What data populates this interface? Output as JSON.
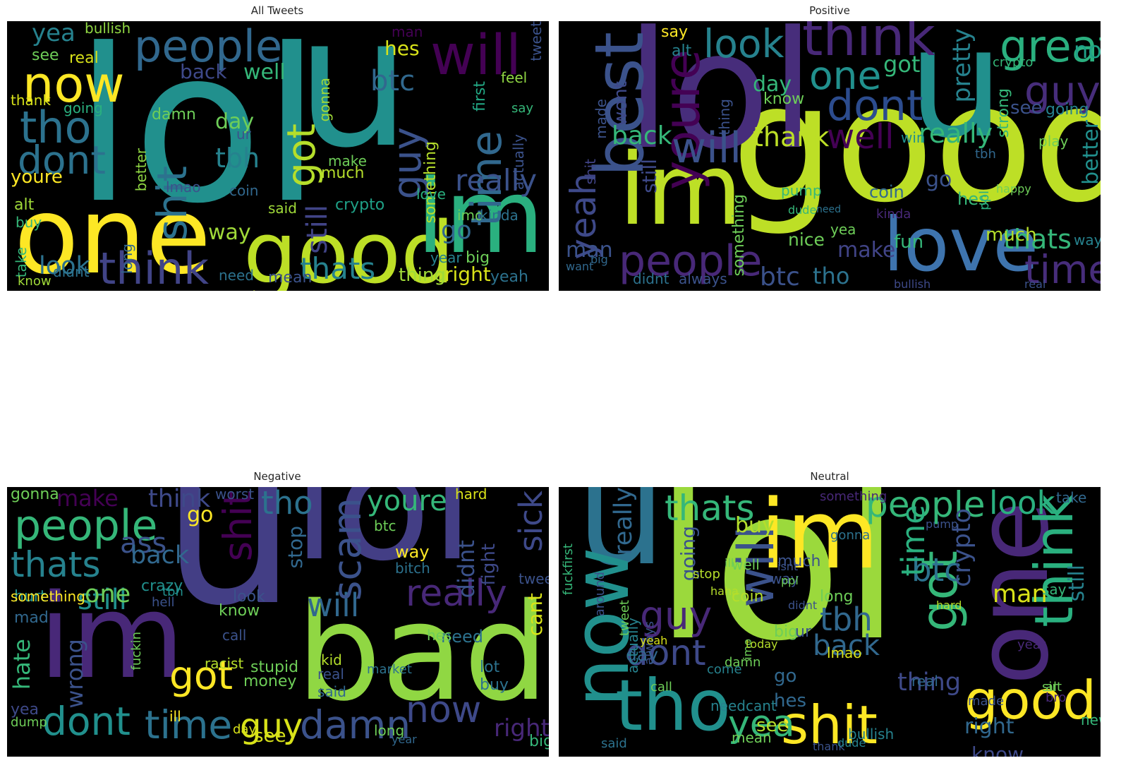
{
  "panels": [
    {
      "title": "All Tweets",
      "words": [
        {
          "t": "lol",
          "c": "#21908d"
        },
        {
          "t": "u",
          "c": "#21908d"
        },
        {
          "t": "one",
          "c": "#fde725"
        },
        {
          "t": "good",
          "c": "#bddf26"
        },
        {
          "t": "im",
          "c": "#2ab07f"
        },
        {
          "t": "people",
          "c": "#31688e"
        },
        {
          "t": "now",
          "c": "#fde725"
        },
        {
          "t": "tho",
          "c": "#2c728e"
        },
        {
          "t": "dont",
          "c": "#2c728e"
        },
        {
          "t": "think",
          "c": "#414487"
        },
        {
          "t": "will",
          "c": "#440154"
        },
        {
          "t": "guy",
          "c": "#3b528b"
        },
        {
          "t": "shit",
          "c": "#2c728e"
        },
        {
          "t": "got",
          "c": "#b5de2b"
        },
        {
          "t": "time",
          "c": "#31688e"
        },
        {
          "t": "tbh",
          "c": "#26828e"
        },
        {
          "t": "thats",
          "c": "#26828e"
        },
        {
          "t": "look",
          "c": "#2c728e"
        },
        {
          "t": "btc",
          "c": "#31688e"
        },
        {
          "t": "really",
          "c": "#3b528b"
        },
        {
          "t": "yea",
          "c": "#26828e"
        },
        {
          "t": "still",
          "c": "#414487"
        },
        {
          "t": "back",
          "c": "#3e4989"
        },
        {
          "t": "well",
          "c": "#35b779"
        },
        {
          "t": "see",
          "c": "#6ece58"
        },
        {
          "t": "day",
          "c": "#6ece58"
        },
        {
          "t": "youre",
          "c": "#fde725"
        },
        {
          "t": "right",
          "c": "#d8e219"
        },
        {
          "t": "thing",
          "c": "#a0da39"
        },
        {
          "t": "way",
          "c": "#a0da39"
        },
        {
          "t": "go",
          "c": "#31688e"
        },
        {
          "t": "hes",
          "c": "#d8e219"
        },
        {
          "t": "bullish",
          "c": "#90d743"
        },
        {
          "t": "something",
          "c": "#b5de2b"
        },
        {
          "t": "crypto",
          "c": "#1fa187"
        },
        {
          "t": "make",
          "c": "#6ece58"
        },
        {
          "t": "much",
          "c": "#b5de2b"
        },
        {
          "t": "said",
          "c": "#a0da39"
        },
        {
          "t": "mean",
          "c": "#3b528b"
        },
        {
          "t": "yeah",
          "c": "#2c728e"
        },
        {
          "t": "real",
          "c": "#d8e219"
        },
        {
          "t": "thank",
          "c": "#d8e219"
        },
        {
          "t": "going",
          "c": "#2ab07f"
        },
        {
          "t": "better",
          "c": "#90d743"
        },
        {
          "t": "lmao",
          "c": "#3b528b"
        },
        {
          "t": "man",
          "c": "#440154"
        },
        {
          "t": "alt",
          "c": "#a0da39"
        },
        {
          "t": "buy",
          "c": "#35b779"
        },
        {
          "t": "take",
          "c": "#35b779"
        },
        {
          "t": "know",
          "c": "#a0da39"
        },
        {
          "t": "didnt",
          "c": "#2c728e"
        },
        {
          "t": "need",
          "c": "#2c728e"
        },
        {
          "t": "long",
          "c": "#31688e"
        },
        {
          "t": "gonna",
          "c": "#a0da39"
        },
        {
          "t": "actually",
          "c": "#3b528b"
        },
        {
          "t": "imo",
          "c": "#6ece58"
        },
        {
          "t": "kinda",
          "c": "#2c728e"
        },
        {
          "t": "big",
          "c": "#6ece58"
        },
        {
          "t": "ur",
          "c": "#3b528b"
        },
        {
          "t": "love",
          "c": "#2ab07f"
        },
        {
          "t": "coin",
          "c": "#31688e"
        },
        {
          "t": "damn",
          "c": "#6ece58"
        },
        {
          "t": "first",
          "c": "#22a884"
        },
        {
          "t": "say",
          "c": "#35b779"
        },
        {
          "t": "tweet",
          "c": "#3b528b"
        },
        {
          "t": "feel",
          "c": "#90d743"
        },
        {
          "t": "year",
          "c": "#26828e"
        }
      ]
    },
    {
      "title": "Positive",
      "words": [
        {
          "t": "good",
          "c": "#bddf26"
        },
        {
          "t": "u",
          "c": "#21908d"
        },
        {
          "t": "lol",
          "c": "#472d7b"
        },
        {
          "t": "im",
          "c": "#bddf26"
        },
        {
          "t": "best",
          "c": "#3b528b"
        },
        {
          "t": "love",
          "c": "#3e74ae"
        },
        {
          "t": "people",
          "c": "#482878"
        },
        {
          "t": "think",
          "c": "#482878"
        },
        {
          "t": "great",
          "c": "#2ab07f"
        },
        {
          "t": "youre",
          "c": "#440154"
        },
        {
          "t": "dont",
          "c": "#2c4c8e"
        },
        {
          "t": "will",
          "c": "#3b528b"
        },
        {
          "t": "one",
          "c": "#21908d"
        },
        {
          "t": "look",
          "c": "#26828e"
        },
        {
          "t": "guy",
          "c": "#472d7b"
        },
        {
          "t": "time",
          "c": "#472d7b"
        },
        {
          "t": "yeah",
          "c": "#3e4989"
        },
        {
          "t": "well",
          "c": "#440154"
        },
        {
          "t": "really",
          "c": "#35b779"
        },
        {
          "t": "thank",
          "c": "#bddf26"
        },
        {
          "t": "thats",
          "c": "#35b779"
        },
        {
          "t": "pretty",
          "c": "#26828e"
        },
        {
          "t": "got",
          "c": "#35b779"
        },
        {
          "t": "day",
          "c": "#35b779"
        },
        {
          "t": "now",
          "c": "#1fa187"
        },
        {
          "t": "back",
          "c": "#35b779"
        },
        {
          "t": "still",
          "c": "#3e4989"
        },
        {
          "t": "wont",
          "c": "#3e4989"
        },
        {
          "t": "btc",
          "c": "#3b528b"
        },
        {
          "t": "tho",
          "c": "#2c728e"
        },
        {
          "t": "man",
          "c": "#3b528b"
        },
        {
          "t": "make",
          "c": "#414487"
        },
        {
          "t": "go",
          "c": "#3b528b"
        },
        {
          "t": "see",
          "c": "#3b528b"
        },
        {
          "t": "better",
          "c": "#21908d"
        },
        {
          "t": "nice",
          "c": "#6ece58"
        },
        {
          "t": "fun",
          "c": "#35b779"
        },
        {
          "t": "much",
          "c": "#b5de2b"
        },
        {
          "t": "coin",
          "c": "#31688e"
        },
        {
          "t": "hes",
          "c": "#35b779"
        },
        {
          "t": "say",
          "c": "#fde725"
        },
        {
          "t": "alt",
          "c": "#26828e"
        },
        {
          "t": "going",
          "c": "#26828e"
        },
        {
          "t": "always",
          "c": "#3b528b"
        },
        {
          "t": "didnt",
          "c": "#2c728e"
        },
        {
          "t": "shit",
          "c": "#414487"
        },
        {
          "t": "something",
          "c": "#6ece58"
        },
        {
          "t": "strong",
          "c": "#35b779"
        },
        {
          "t": "play",
          "c": "#6ece58"
        },
        {
          "t": "win",
          "c": "#21908d"
        },
        {
          "t": "pump",
          "c": "#35b779"
        },
        {
          "t": "know",
          "c": "#6ece58"
        },
        {
          "t": "crypto",
          "c": "#35b779"
        },
        {
          "t": "yea",
          "c": "#6ece58"
        },
        {
          "t": "bullish",
          "c": "#3e4989"
        },
        {
          "t": "tbh",
          "c": "#31688e"
        },
        {
          "t": "real",
          "c": "#3b528b"
        },
        {
          "t": "kinda",
          "c": "#482878"
        },
        {
          "t": "ppl",
          "c": "#2ab07f"
        },
        {
          "t": "made",
          "c": "#3b528b"
        },
        {
          "t": "thing",
          "c": "#3b528b"
        },
        {
          "t": "happy",
          "c": "#6ece58"
        },
        {
          "t": "dude",
          "c": "#35b779"
        },
        {
          "t": "need",
          "c": "#2c728e"
        },
        {
          "t": "want",
          "c": "#31688e"
        },
        {
          "t": "big",
          "c": "#31688e"
        },
        {
          "t": "way",
          "c": "#26828e"
        }
      ]
    },
    {
      "title": "Negative",
      "words": [
        {
          "t": "u",
          "c": "#433e85"
        },
        {
          "t": "lol",
          "c": "#433e85"
        },
        {
          "t": "bad",
          "c": "#90d743"
        },
        {
          "t": "im",
          "c": "#482878"
        },
        {
          "t": "people",
          "c": "#35b779"
        },
        {
          "t": "thats",
          "c": "#26828e"
        },
        {
          "t": "dont",
          "c": "#21908d"
        },
        {
          "t": "time",
          "c": "#2c728e"
        },
        {
          "t": "got",
          "c": "#fde725"
        },
        {
          "t": "shit",
          "c": "#440154"
        },
        {
          "t": "really",
          "c": "#482878"
        },
        {
          "t": "will",
          "c": "#31688e"
        },
        {
          "t": "now",
          "c": "#3e4989"
        },
        {
          "t": "damn",
          "c": "#3b528b"
        },
        {
          "t": "guy",
          "c": "#d8e219"
        },
        {
          "t": "tho",
          "c": "#2c728e"
        },
        {
          "t": "scam",
          "c": "#3b528b"
        },
        {
          "t": "youre",
          "c": "#35b779"
        },
        {
          "t": "sick",
          "c": "#3e4989"
        },
        {
          "t": "still",
          "c": "#21908d"
        },
        {
          "t": "ass",
          "c": "#3b528b"
        },
        {
          "t": "one",
          "c": "#6ece58"
        },
        {
          "t": "back",
          "c": "#31688e"
        },
        {
          "t": "think",
          "c": "#3e4989"
        },
        {
          "t": "make",
          "c": "#440154"
        },
        {
          "t": "go",
          "c": "#fde725"
        },
        {
          "t": "right",
          "c": "#482878"
        },
        {
          "t": "see",
          "c": "#d8e219"
        },
        {
          "t": "didnt",
          "c": "#3b528b"
        },
        {
          "t": "wrong",
          "c": "#3b528b"
        },
        {
          "t": "hate",
          "c": "#35b779"
        },
        {
          "t": "fight",
          "c": "#3e4989"
        },
        {
          "t": "cant",
          "c": "#d8e219"
        },
        {
          "t": "way",
          "c": "#fde725"
        },
        {
          "t": "stop",
          "c": "#31688e"
        },
        {
          "t": "need",
          "c": "#2c728e"
        },
        {
          "t": "know",
          "c": "#6ece58"
        },
        {
          "t": "look",
          "c": "#3b528b"
        },
        {
          "t": "crazy",
          "c": "#21908d"
        },
        {
          "t": "stupid",
          "c": "#6ece58"
        },
        {
          "t": "money",
          "c": "#6ece58"
        },
        {
          "t": "racist",
          "c": "#b5de2b"
        },
        {
          "t": "hurt",
          "c": "#21908d"
        },
        {
          "t": "mad",
          "c": "#31688e"
        },
        {
          "t": "bitch",
          "c": "#2c728e"
        },
        {
          "t": "hard",
          "c": "#d8e219"
        },
        {
          "t": "worst",
          "c": "#3b528b"
        },
        {
          "t": "gonna",
          "c": "#6ece58"
        },
        {
          "t": "btc",
          "c": "#6ece58"
        },
        {
          "t": "lot",
          "c": "#2c728e"
        },
        {
          "t": "buy",
          "c": "#2c728e"
        },
        {
          "t": "kid",
          "c": "#b5de2b"
        },
        {
          "t": "real",
          "c": "#3b528b"
        },
        {
          "t": "said",
          "c": "#31688e"
        },
        {
          "t": "market",
          "c": "#2c728e"
        },
        {
          "t": "something",
          "c": "#fde725"
        },
        {
          "t": "tweet",
          "c": "#3b528b"
        },
        {
          "t": "long",
          "c": "#6ece58"
        },
        {
          "t": "year",
          "c": "#31688e"
        },
        {
          "t": "day",
          "c": "#d8e219"
        },
        {
          "t": "ill",
          "c": "#fde725"
        },
        {
          "t": "hell",
          "c": "#3b528b"
        },
        {
          "t": "call",
          "c": "#3b528b"
        },
        {
          "t": "fuckin",
          "c": "#6ece58"
        },
        {
          "t": "tbh",
          "c": "#21908d"
        },
        {
          "t": "yea",
          "c": "#3e4989"
        },
        {
          "t": "big",
          "c": "#35b779"
        },
        {
          "t": "dump",
          "c": "#6ece58"
        },
        {
          "t": "hes",
          "c": "#6ece58"
        }
      ]
    },
    {
      "title": "Neutral",
      "words": [
        {
          "t": "lol",
          "c": "#9bd93c"
        },
        {
          "t": "u",
          "c": "#2c728e"
        },
        {
          "t": "one",
          "c": "#482878"
        },
        {
          "t": "im",
          "c": "#fde725"
        },
        {
          "t": "now",
          "c": "#21908d"
        },
        {
          "t": "tho",
          "c": "#21908d"
        },
        {
          "t": "shit",
          "c": "#fde725"
        },
        {
          "t": "good",
          "c": "#fde725"
        },
        {
          "t": "think",
          "c": "#2ab07f"
        },
        {
          "t": "got",
          "c": "#35b779"
        },
        {
          "t": "people",
          "c": "#35b779"
        },
        {
          "t": "look",
          "c": "#2ab07f"
        },
        {
          "t": "thats",
          "c": "#35b779"
        },
        {
          "t": "will",
          "c": "#3b528b"
        },
        {
          "t": "dont",
          "c": "#3e4989"
        },
        {
          "t": "guy",
          "c": "#482878"
        },
        {
          "t": "tbh",
          "c": "#31688e"
        },
        {
          "t": "back",
          "c": "#31688e"
        },
        {
          "t": "btc",
          "c": "#2c728e"
        },
        {
          "t": "yea",
          "c": "#35b779"
        },
        {
          "t": "time",
          "c": "#2ab07f"
        },
        {
          "t": "really",
          "c": "#31688e"
        },
        {
          "t": "crypto",
          "c": "#3b528b"
        },
        {
          "t": "thing",
          "c": "#3e4989"
        },
        {
          "t": "right",
          "c": "#31688e"
        },
        {
          "t": "still",
          "c": "#26828e"
        },
        {
          "t": "man",
          "c": "#d8e219"
        },
        {
          "t": "know",
          "c": "#3e4989"
        },
        {
          "t": "go",
          "c": "#31688e"
        },
        {
          "t": "day",
          "c": "#31688e"
        },
        {
          "t": "going",
          "c": "#3b528b"
        },
        {
          "t": "buy",
          "c": "#b5de2b"
        },
        {
          "t": "hes",
          "c": "#31688e"
        },
        {
          "t": "see",
          "c": "#b5de2b"
        },
        {
          "t": "coin",
          "c": "#b5de2b"
        },
        {
          "t": "long",
          "c": "#6ece58"
        },
        {
          "t": "big",
          "c": "#6ece58"
        },
        {
          "t": "ur",
          "c": "#3b528b"
        },
        {
          "t": "well",
          "c": "#6ece58"
        },
        {
          "t": "much",
          "c": "#3b528b"
        },
        {
          "t": "way",
          "c": "#3b528b"
        },
        {
          "t": "bullish",
          "c": "#26828e"
        },
        {
          "t": "needcant",
          "c": "#26828e"
        },
        {
          "t": "mean",
          "c": "#6ece58"
        },
        {
          "t": "real",
          "c": "#31688e"
        },
        {
          "t": "lmao",
          "c": "#d8e219"
        },
        {
          "t": "fuckfirst",
          "c": "#35b779"
        },
        {
          "t": "actually",
          "c": "#26828e"
        },
        {
          "t": "always",
          "c": "#3b528b"
        },
        {
          "t": "yeah",
          "c": "#d8e219"
        },
        {
          "t": "say",
          "c": "#35b779"
        },
        {
          "t": "year",
          "c": "#482878"
        },
        {
          "t": "made",
          "c": "#3b528b"
        },
        {
          "t": "alt",
          "c": "#6ece58"
        },
        {
          "t": "new",
          "c": "#35b779"
        },
        {
          "t": "take",
          "c": "#31688e"
        },
        {
          "t": "something",
          "c": "#482878"
        },
        {
          "t": "imo",
          "c": "#6ece58"
        },
        {
          "t": "come",
          "c": "#26828e"
        },
        {
          "t": "today",
          "c": "#b5de2b"
        },
        {
          "t": "said",
          "c": "#2c728e"
        },
        {
          "t": "thank",
          "c": "#3b528b"
        },
        {
          "t": "damn",
          "c": "#6ece58"
        },
        {
          "t": "bro",
          "c": "#482878"
        },
        {
          "t": "sir",
          "c": "#6ece58"
        },
        {
          "t": "call",
          "c": "#6ece58"
        },
        {
          "t": "stop",
          "c": "#b5de2b"
        },
        {
          "t": "gonna",
          "c": "#2c728e"
        },
        {
          "t": "dude",
          "c": "#26828e"
        },
        {
          "t": "pump",
          "c": "#3b528b"
        },
        {
          "t": "hard",
          "c": "#b5de2b"
        },
        {
          "t": "ill",
          "c": "#6ece58"
        },
        {
          "t": "isnt",
          "c": "#3b528b"
        },
        {
          "t": "didnt",
          "c": "#3b528b"
        },
        {
          "t": "around",
          "c": "#3b528b"
        },
        {
          "t": "haha",
          "c": "#b5de2b"
        },
        {
          "t": "tweet",
          "c": "#6ece58"
        },
        {
          "t": "ppl",
          "c": "#6ece58"
        }
      ]
    }
  ]
}
